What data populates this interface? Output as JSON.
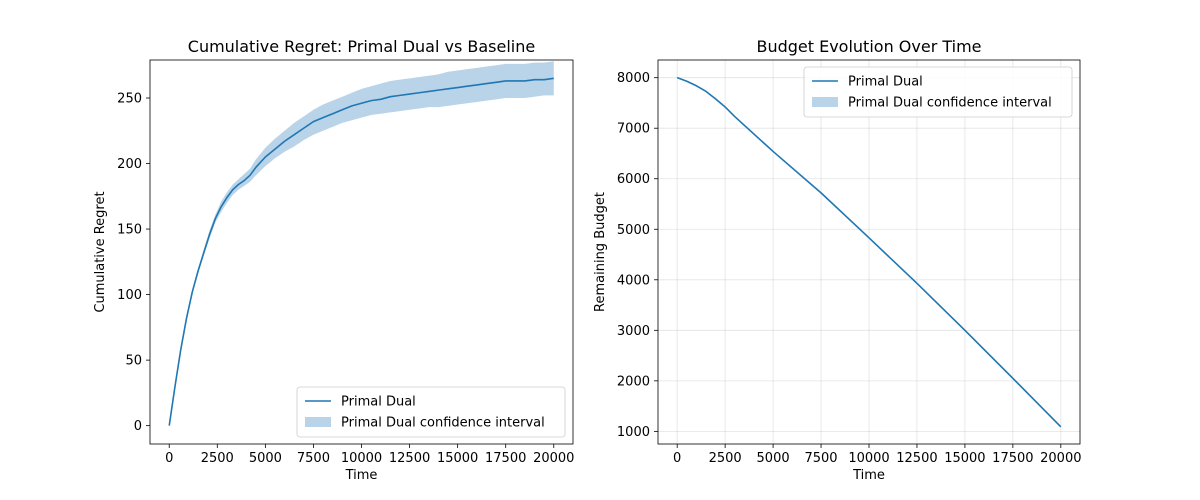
{
  "chart_data": [
    {
      "type": "line",
      "title": "Cumulative Regret: Primal Dual vs Baseline",
      "xlabel": "Time",
      "ylabel": "Cumulative Regret",
      "xlim": [
        -1000,
        21000
      ],
      "ylim": [
        -14,
        279
      ],
      "xticks": [
        0,
        2500,
        5000,
        7500,
        10000,
        12500,
        15000,
        17500,
        20000
      ],
      "xtick_labels": [
        "0",
        "2500",
        "5000",
        "7500",
        "10000",
        "12500",
        "15000",
        "17500",
        "20000"
      ],
      "yticks": [
        0,
        50,
        100,
        150,
        200,
        250
      ],
      "ytick_labels": [
        "0",
        "50",
        "100",
        "150",
        "200",
        "250"
      ],
      "grid": false,
      "legend_position": "lower-right",
      "series": [
        {
          "name": "Primal Dual",
          "color": "#1f77b4",
          "x": [
            0,
            300,
            600,
            900,
            1200,
            1500,
            1800,
            2100,
            2400,
            2700,
            3000,
            3300,
            3600,
            3900,
            4200,
            4500,
            5000,
            5500,
            6000,
            6500,
            7000,
            7500,
            8000,
            8500,
            9000,
            9500,
            10000,
            10500,
            11000,
            11500,
            12000,
            12500,
            13000,
            13500,
            14000,
            14500,
            15000,
            15500,
            16000,
            16500,
            17000,
            17500,
            18000,
            18500,
            19000,
            19500,
            20000
          ],
          "y": [
            0,
            30,
            58,
            82,
            102,
            118,
            132,
            146,
            158,
            167,
            174,
            180,
            184,
            187,
            191,
            197,
            205,
            211,
            217,
            222,
            227,
            232,
            235,
            238,
            241,
            244,
            246,
            248,
            249,
            251,
            252,
            253,
            254,
            255,
            256,
            257,
            258,
            259,
            260,
            261,
            262,
            263,
            263,
            263,
            264,
            264,
            265
          ]
        },
        {
          "name": "Primal Dual confidence interval",
          "color": "#b9d3e9",
          "x": [
            0,
            300,
            600,
            900,
            1200,
            1500,
            1800,
            2100,
            2400,
            2700,
            3000,
            3300,
            3600,
            3900,
            4200,
            4500,
            5000,
            5500,
            6000,
            6500,
            7000,
            7500,
            8000,
            8500,
            9000,
            9500,
            10000,
            10500,
            11000,
            11500,
            12000,
            12500,
            13000,
            13500,
            14000,
            14500,
            15000,
            15500,
            16000,
            16500,
            17000,
            17500,
            18000,
            18500,
            19000,
            19500,
            20000
          ],
          "lower": [
            0,
            29,
            57,
            80,
            100,
            116,
            130,
            143,
            155,
            163,
            170,
            176,
            180,
            183,
            186,
            191,
            198,
            204,
            209,
            213,
            218,
            222,
            225,
            228,
            231,
            233,
            235,
            237,
            238,
            239,
            240,
            241,
            242,
            243,
            243,
            244,
            245,
            246,
            247,
            248,
            249,
            250,
            250,
            250,
            251,
            252,
            252
          ],
          "upper": [
            0,
            31,
            59,
            84,
            104,
            120,
            135,
            149,
            161,
            171,
            178,
            184,
            188,
            192,
            196,
            203,
            212,
            219,
            225,
            231,
            236,
            241,
            245,
            248,
            251,
            254,
            257,
            259,
            261,
            263,
            264,
            265,
            266,
            267,
            268,
            270,
            271,
            272,
            273,
            274,
            275,
            276,
            276,
            276,
            277,
            277,
            278
          ]
        }
      ]
    },
    {
      "type": "line",
      "title": "Budget Evolution Over Time",
      "xlabel": "Time",
      "ylabel": "Remaining Budget",
      "xlim": [
        -1000,
        21000
      ],
      "ylim": [
        750,
        8350
      ],
      "xticks": [
        0,
        2500,
        5000,
        7500,
        10000,
        12500,
        15000,
        17500,
        20000
      ],
      "xtick_labels": [
        "0",
        "2500",
        "5000",
        "7500",
        "10000",
        "12500",
        "15000",
        "17500",
        "20000"
      ],
      "yticks": [
        1000,
        2000,
        3000,
        4000,
        5000,
        6000,
        7000,
        8000
      ],
      "ytick_labels": [
        "1000",
        "2000",
        "3000",
        "4000",
        "5000",
        "6000",
        "7000",
        "8000"
      ],
      "grid": true,
      "legend_position": "upper-right",
      "series": [
        {
          "name": "Primal Dual",
          "color": "#1f77b4",
          "x": [
            0,
            500,
            1000,
            1500,
            2000,
            2500,
            3000,
            5000,
            7500,
            10000,
            12500,
            15000,
            17500,
            20000
          ],
          "y": [
            8000,
            7930,
            7840,
            7730,
            7580,
            7420,
            7230,
            6540,
            5720,
            4830,
            3930,
            3000,
            2050,
            1090
          ]
        },
        {
          "name": "Primal Dual confidence interval",
          "color": "#b9d3e9",
          "x": [
            0,
            500,
            1000,
            1500,
            2000,
            2500,
            3000,
            5000,
            7500,
            10000,
            12500,
            15000,
            17500,
            20000
          ],
          "lower": [
            7995,
            7925,
            7834,
            7723,
            7572,
            7411,
            7220,
            6528,
            5706,
            4814,
            3912,
            2981,
            2029,
            1068
          ],
          "upper": [
            8005,
            7935,
            7846,
            7737,
            7588,
            7429,
            7240,
            6552,
            5734,
            4846,
            3948,
            3019,
            2071,
            1112
          ]
        }
      ]
    }
  ]
}
